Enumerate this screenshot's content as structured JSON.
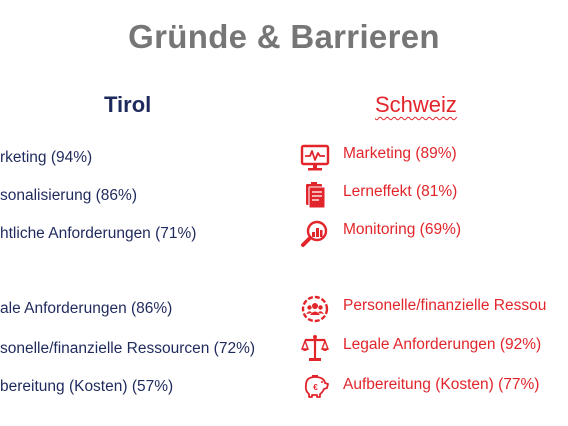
{
  "title": "Gründe & Barrieren",
  "tirol": {
    "heading": "Tirol",
    "items": [
      {
        "label": "rketing (94%)"
      },
      {
        "label": "sonalisierung (86%)"
      },
      {
        "label": "htliche Anforderungen (71%)"
      },
      {
        "label": "ale Anforderungen (86%)"
      },
      {
        "label": "sonelle/finanzielle Ressourcen (72%)"
      },
      {
        "label": "bereitung (Kosten) (57%)"
      }
    ]
  },
  "schweiz": {
    "heading": "Schweiz",
    "items": [
      {
        "label": "Marketing (89%)",
        "icon": "monitor-chart-icon"
      },
      {
        "label": "Lerneffekt (81%)",
        "icon": "documents-icon"
      },
      {
        "label": "Monitoring (69%)",
        "icon": "magnifier-chart-icon"
      },
      {
        "label": "Personelle/finanzielle Ressou",
        "icon": "people-circle-icon"
      },
      {
        "label": "Legale Anforderungen (92%)",
        "icon": "scales-icon"
      },
      {
        "label": "Aufbereitung (Kosten) (77%)",
        "icon": "piggy-bank-icon"
      }
    ]
  },
  "colors": {
    "title": "#767676",
    "tirol": "#1f2a5c",
    "schweiz": "#e1252b"
  }
}
